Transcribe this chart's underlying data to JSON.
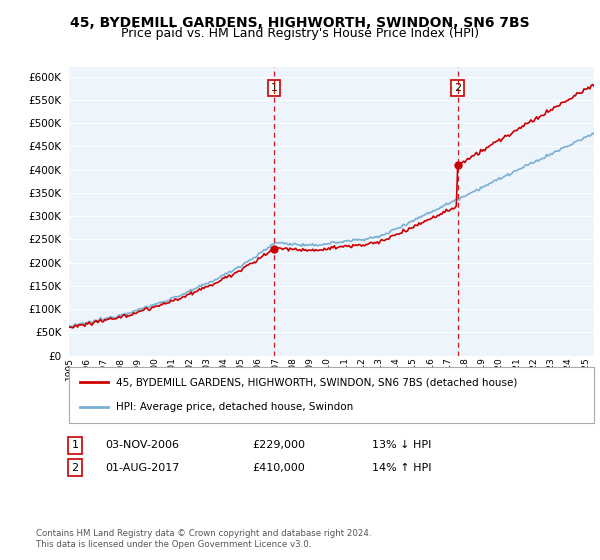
{
  "title": "45, BYDEMILL GARDENS, HIGHWORTH, SWINDON, SN6 7BS",
  "subtitle": "Price paid vs. HM Land Registry's House Price Index (HPI)",
  "ytick_values": [
    0,
    50000,
    100000,
    150000,
    200000,
    250000,
    300000,
    350000,
    400000,
    450000,
    500000,
    550000,
    600000
  ],
  "ylim": [
    0,
    620000
  ],
  "xlim_start": 1995.0,
  "xlim_end": 2025.5,
  "background_color": "#ffffff",
  "plot_bg_color": "#eef4fb",
  "grid_color": "#ffffff",
  "hpi_color": "#7ab0d4",
  "price_color": "#cc0000",
  "sale1_year": 2006.917,
  "sale1_price": 229000,
  "sale2_year": 2017.583,
  "sale2_price": 410000,
  "legend_property": "45, BYDEMILL GARDENS, HIGHWORTH, SWINDON, SN6 7BS (detached house)",
  "legend_hpi": "HPI: Average price, detached house, Swindon",
  "footer": "Contains HM Land Registry data © Crown copyright and database right 2024.\nThis data is licensed under the Open Government Licence v3.0.",
  "title_fontsize": 10,
  "subtitle_fontsize": 9
}
